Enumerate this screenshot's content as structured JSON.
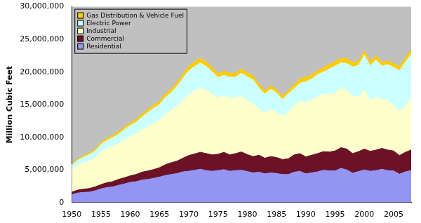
{
  "chart_data": {
    "type": "area",
    "stacked": true,
    "grid": false,
    "legend": "upper left",
    "y_label": "Million Cubic Feet",
    "categories": [
      "1950",
      null,
      null,
      null,
      null,
      "1955",
      null,
      null,
      null,
      null,
      "1960",
      null,
      null,
      null,
      null,
      "1965",
      null,
      null,
      null,
      null,
      "1970",
      null,
      null,
      null,
      null,
      "1975",
      null,
      null,
      null,
      null,
      "1980",
      null,
      null,
      null,
      null,
      "1985",
      null,
      null,
      null,
      null,
      "1990",
      null,
      null,
      null,
      null,
      "1995",
      null,
      null,
      null,
      null,
      "2000",
      null,
      null,
      null,
      null,
      "2005",
      null,
      null,
      null
    ],
    "ylim": [
      0,
      30000000
    ],
    "yticks": [
      0,
      {
        "value": 5000000,
        "label": "5,000,000"
      },
      {
        "value": 10000000,
        "label": "10,000,000"
      },
      {
        "value": 15000000,
        "label": "15,000,000"
      },
      {
        "value": 20000000,
        "label": "20,000,000"
      },
      {
        "value": 25000000,
        "label": "25,000,000"
      },
      {
        "value": 30000000,
        "label": "30,000,000"
      }
    ],
    "series": [
      {
        "name": "Residential",
        "color": "#9494f2",
        "values": [
          1200000,
          1450000,
          1550000,
          1600000,
          1800000,
          2100000,
          2300000,
          2400000,
          2650000,
          2850000,
          3100000,
          3200000,
          3450000,
          3550000,
          3700000,
          3900000,
          4150000,
          4300000,
          4450000,
          4700000,
          4800000,
          4950000,
          5100000,
          4900000,
          4800000,
          4900000,
          5050000,
          4800000,
          4900000,
          4950000,
          4750000,
          4550000,
          4650000,
          4400000,
          4550000,
          4450000,
          4300000,
          4300000,
          4650000,
          4800000,
          4400000,
          4550000,
          4700000,
          4950000,
          4850000,
          4850000,
          5250000,
          5000000,
          4500000,
          4750000,
          5000000,
          4800000,
          4900000,
          5100000,
          4900000,
          4850000,
          4350000,
          4700000,
          4900000
        ]
      },
      {
        "name": "Commercial",
        "color": "#6b1226",
        "values": [
          400000,
          450000,
          500000,
          550000,
          600000,
          650000,
          750000,
          800000,
          900000,
          950000,
          1000000,
          1100000,
          1200000,
          1300000,
          1350000,
          1450000,
          1650000,
          1800000,
          1900000,
          2100000,
          2400000,
          2500000,
          2600000,
          2600000,
          2500000,
          2500000,
          2650000,
          2500000,
          2600000,
          2800000,
          2600000,
          2500000,
          2600000,
          2400000,
          2500000,
          2450000,
          2300000,
          2400000,
          2650000,
          2700000,
          2600000,
          2700000,
          2800000,
          2850000,
          2900000,
          3050000,
          3150000,
          3200000,
          3000000,
          3050000,
          3200000,
          3050000,
          3150000,
          3200000,
          3150000,
          3050000,
          2850000,
          3000000,
          3150000
        ]
      },
      {
        "name": "Industrial",
        "color": "#ffffcc",
        "values": [
          3400000,
          3800000,
          4000000,
          4200000,
          4400000,
          5000000,
          5200000,
          5400000,
          5500000,
          5800000,
          6000000,
          6200000,
          6500000,
          6800000,
          7100000,
          7300000,
          7700000,
          8000000,
          8400000,
          8900000,
          9300000,
          9600000,
          9800000,
          9700000,
          9300000,
          8600000,
          8700000,
          8700000,
          8500000,
          8600000,
          8200000,
          8100000,
          7100000,
          6900000,
          7200000,
          6900000,
          6600000,
          7100000,
          7500000,
          8000000,
          8300000,
          8400000,
          8700000,
          8800000,
          8800000,
          8800000,
          9200000,
          9000000,
          8700000,
          8400000,
          9000000,
          7800000,
          8100000,
          7500000,
          7600000,
          6900000,
          6800000,
          7000000,
          7950000
        ]
      },
      {
        "name": "Electric Power",
        "color": "#ccffff",
        "values": [
          650000,
          750000,
          900000,
          1000000,
          1100000,
          1150000,
          1250000,
          1350000,
          1400000,
          1600000,
          1700000,
          1800000,
          1950000,
          2150000,
          2300000,
          2350000,
          2600000,
          2750000,
          3100000,
          3350000,
          3700000,
          3800000,
          3900000,
          3650000,
          3450000,
          3150000,
          3100000,
          3200000,
          3200000,
          3500000,
          3700000,
          3650000,
          3200000,
          2900000,
          3100000,
          3000000,
          2600000,
          2850000,
          2650000,
          2800000,
          3200000,
          3300000,
          3400000,
          3400000,
          3900000,
          4200000,
          3800000,
          4100000,
          4600000,
          4800000,
          5400000,
          5300000,
          5700000,
          5100000,
          5500000,
          5900000,
          6200000,
          6800000,
          6700000
        ]
      },
      {
        "name": "Gas Distribution & Vehicle Fuel",
        "color": "#ffcc00",
        "values": [
          150000,
          200000,
          250000,
          250000,
          300000,
          300000,
          350000,
          350000,
          400000,
          400000,
          400000,
          400000,
          450000,
          450000,
          500000,
          500000,
          550000,
          550000,
          600000,
          600000,
          700000,
          700000,
          700000,
          700000,
          650000,
          600000,
          600000,
          600000,
          600000,
          650000,
          650000,
          600000,
          600000,
          500000,
          550000,
          500000,
          500000,
          500000,
          600000,
          650000,
          700000,
          600000,
          600000,
          650000,
          700000,
          700000,
          700000,
          750000,
          650000,
          650000,
          650000,
          650000,
          650000,
          600000,
          550000,
          600000,
          600000,
          650000,
          650000
        ]
      }
    ]
  }
}
